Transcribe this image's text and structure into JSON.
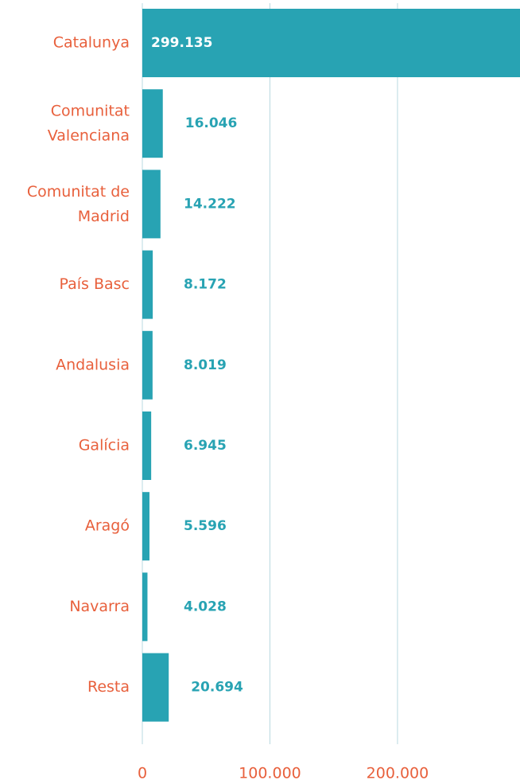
{
  "chart_data": {
    "type": "hbar",
    "categories": [
      "Catalunya",
      "Comunitat Valenciana",
      "Comunitat de Madrid",
      "País Basc",
      "Andalusia",
      "Galícia",
      "Aragó",
      "Navarra",
      "Resta"
    ],
    "values": [
      299135,
      16046,
      14222,
      8172,
      8019,
      6945,
      5596,
      4028,
      20694
    ],
    "value_labels": [
      "299.135",
      "16.046",
      "14.222",
      "8.172",
      "8.019",
      "6.945",
      "5.596",
      "4.028",
      "20.694"
    ],
    "color": "#28a3b3",
    "label_color": "#e8603c",
    "xlim": [
      0,
      296000
    ],
    "xticks": [
      0,
      {
        "value": 100000,
        "label": "100.000"
      },
      {
        "value": 200000,
        "label": "200.000"
      }
    ],
    "grid": true
  }
}
